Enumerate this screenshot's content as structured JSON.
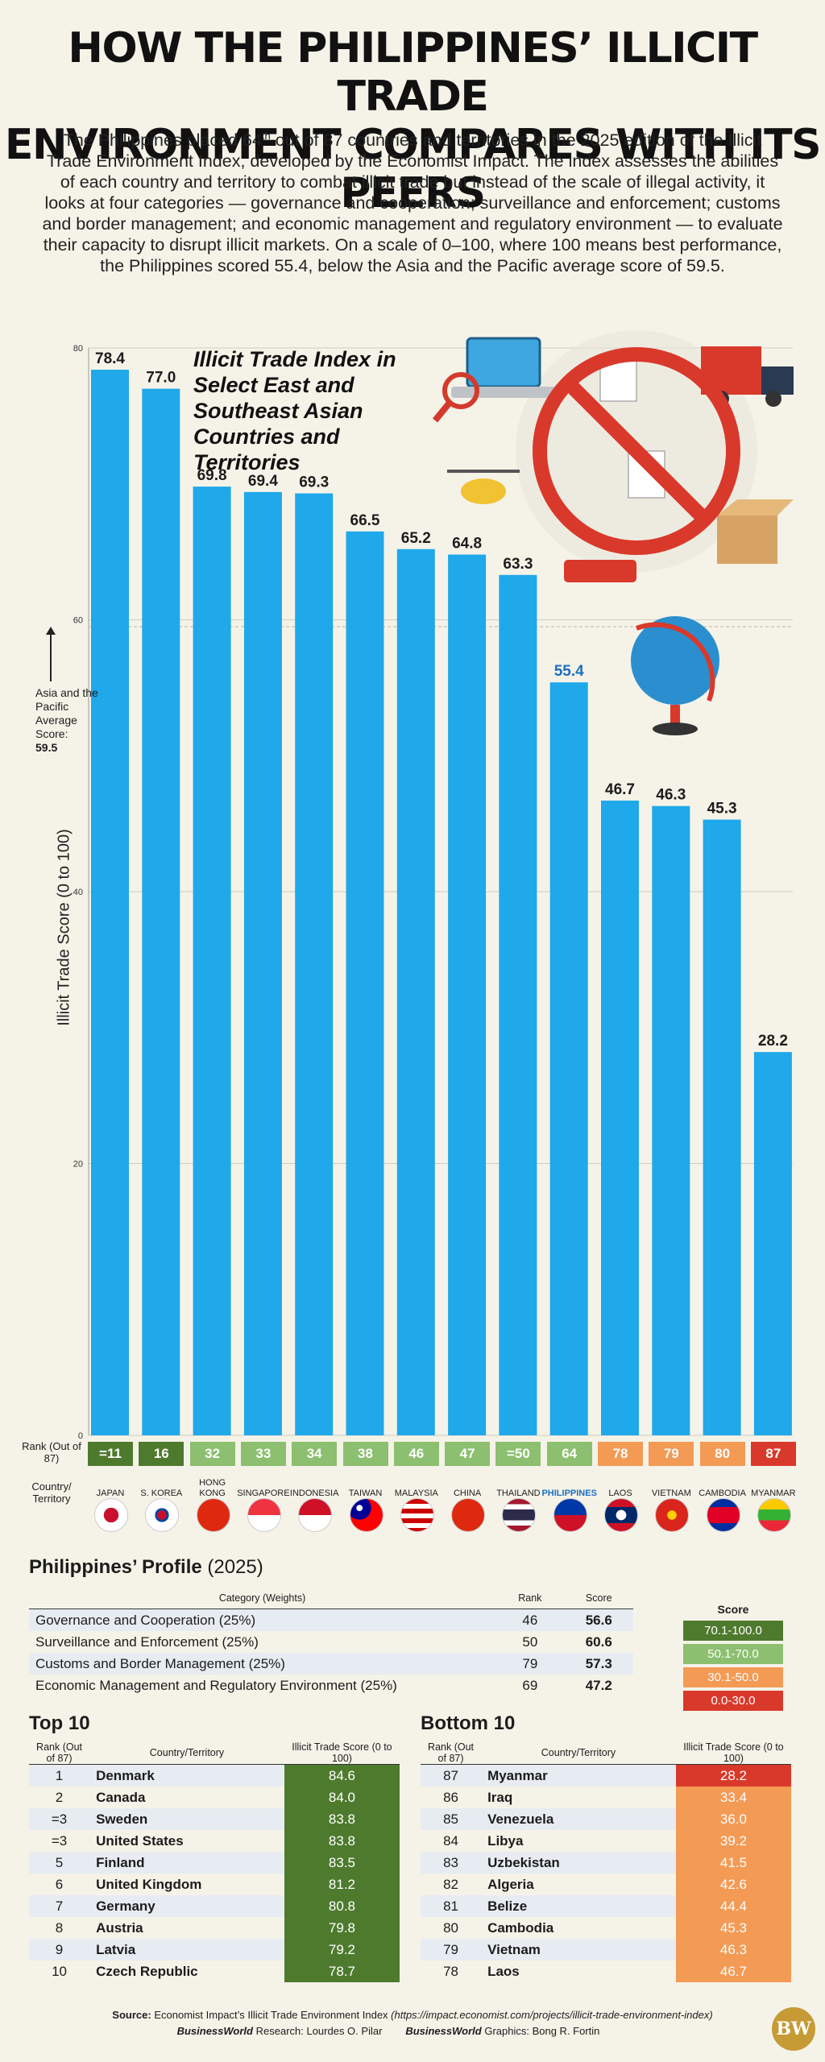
{
  "header": {
    "title_line1": "HOW THE PHILIPPINES’ ILLICIT TRADE",
    "title_line2": "ENVIRONMENT COMPARES WITH ITS PEERS",
    "intro_a": "The Philippines placed 64",
    "intro_sup": "th",
    "intro_b": " out of 87 countries and territories in the 2025 edition of the Illicit Trade Environment Index, developed by the Economist Impact. The index assesses the abilities of each country and territory to combat illicit trade but instead of the scale of illegal activity, it looks at four categories — governance and cooperation; surveillance and enforcement; customs and border management; and economic management and regulatory environment — to evaluate their capacity to disrupt illicit markets. On a scale of 0–100, where 100 means best performance, the Philippines scored 55.4, below the Asia and the Pacific average score of 59.5."
  },
  "chart_data": {
    "type": "bar",
    "title": "Illicit Trade Index in Select East and Southeast Asian Countries and Territories",
    "ylabel": "Illicit Trade Score (0 to 100)",
    "ylim": [
      0,
      80
    ],
    "yticks": [
      0,
      20,
      40,
      60,
      80
    ],
    "grid": true,
    "categories": [
      "JAPAN",
      "S. KOREA",
      "HONG KONG",
      "SINGAPORE",
      "INDONESIA",
      "TAIWAN",
      "MALAYSIA",
      "CHINA",
      "THAILAND",
      "PHILIPPINES",
      "LAOS",
      "VIETNAM",
      "CAMBODIA",
      "MYANMAR"
    ],
    "values": [
      78.4,
      77.0,
      69.8,
      69.4,
      69.3,
      66.5,
      65.2,
      64.8,
      63.3,
      55.4,
      46.7,
      46.3,
      45.3,
      28.2
    ],
    "value_labels": [
      "78.4",
      "77.0",
      "69.8",
      "69.4",
      "69.3",
      "66.5",
      "65.2",
      "64.8",
      "63.3",
      "55.4",
      "46.7",
      "46.3",
      "45.3",
      "28.2"
    ],
    "ranks": [
      "=11",
      "16",
      "32",
      "33",
      "34",
      "38",
      "46",
      "47",
      "=50",
      "64",
      "78",
      "79",
      "80",
      "87"
    ],
    "rank_colors": [
      "#4e7a2e",
      "#4e7a2e",
      "#8cbf6f",
      "#8cbf6f",
      "#8cbf6f",
      "#8cbf6f",
      "#8cbf6f",
      "#8cbf6f",
      "#8cbf6f",
      "#8cbf6f",
      "#f39a55",
      "#f39a55",
      "#f39a55",
      "#d9392b"
    ],
    "highlight": "PHILIPPINES",
    "bar_color": "#1fa8ea",
    "highlight_text_color": "#1a6fc4",
    "reference_line": {
      "value": 59.5,
      "label": "Asia and the Pacific Average Score: 59.5"
    }
  },
  "labels": {
    "rank_row": "Rank (Out of 87)",
    "country_row": "Country/ Territory",
    "avg_a": "Asia and the Pacific Average Score:",
    "avg_b": "59.5"
  },
  "flags": [
    "japan-flag-icon",
    "south-korea-flag-icon",
    "hong-kong-flag-icon",
    "singapore-flag-icon",
    "indonesia-flag-icon",
    "taiwan-flag-icon",
    "malaysia-flag-icon",
    "china-flag-icon",
    "thailand-flag-icon",
    "philippines-flag-icon",
    "laos-flag-icon",
    "vietnam-flag-icon",
    "cambodia-flag-icon",
    "myanmar-flag-icon"
  ],
  "profile": {
    "title_bold": "Philippines’ Profile",
    "title_year": "(2025)",
    "headers": [
      "Category (Weights)",
      "Rank",
      "Score"
    ],
    "rows": [
      {
        "category": "Governance and Cooperation (25%)",
        "rank": "46",
        "score": "56.6"
      },
      {
        "category": "Surveillance and Enforcement (25%)",
        "rank": "50",
        "score": "60.6"
      },
      {
        "category": "Customs and Border Management (25%)",
        "rank": "79",
        "score": "57.3"
      },
      {
        "category": "Economic Management and Regulatory Environment (25%)",
        "rank": "69",
        "score": "47.2"
      }
    ]
  },
  "legend": {
    "title": "Score",
    "items": [
      {
        "label": "70.1-100.0",
        "color": "#4e7a2e"
      },
      {
        "label": "50.1-70.0",
        "color": "#8cbf6f"
      },
      {
        "label": "30.1-50.0",
        "color": "#f39a55"
      },
      {
        "label": "0.0-30.0",
        "color": "#d9392b"
      }
    ]
  },
  "top10": {
    "title": "Top 10",
    "headers": [
      "Rank (Out of 87)",
      "Country/Territory",
      "Illicit Trade Score (0 to 100)"
    ],
    "rows": [
      {
        "rank": "1",
        "country": "Denmark",
        "score": "84.6"
      },
      {
        "rank": "2",
        "country": "Canada",
        "score": "84.0"
      },
      {
        "rank": "=3",
        "country": "Sweden",
        "score": "83.8"
      },
      {
        "rank": "=3",
        "country": "United States",
        "score": "83.8"
      },
      {
        "rank": "5",
        "country": "Finland",
        "score": "83.5"
      },
      {
        "rank": "6",
        "country": "United Kingdom",
        "score": "81.2"
      },
      {
        "rank": "7",
        "country": "Germany",
        "score": "80.8"
      },
      {
        "rank": "8",
        "country": "Austria",
        "score": "79.8"
      },
      {
        "rank": "9",
        "country": "Latvia",
        "score": "79.2"
      },
      {
        "rank": "10",
        "country": "Czech Republic",
        "score": "78.7"
      }
    ]
  },
  "bottom10": {
    "title": "Bottom 10",
    "headers": [
      "Rank (Out of 87)",
      "Country/Territory",
      "Illicit Trade Score (0 to 100)"
    ],
    "rows": [
      {
        "rank": "87",
        "country": "Myanmar",
        "score": "28.2"
      },
      {
        "rank": "86",
        "country": "Iraq",
        "score": "33.4"
      },
      {
        "rank": "85",
        "country": "Venezuela",
        "score": "36.0"
      },
      {
        "rank": "84",
        "country": "Libya",
        "score": "39.2"
      },
      {
        "rank": "83",
        "country": "Uzbekistan",
        "score": "41.5"
      },
      {
        "rank": "82",
        "country": "Algeria",
        "score": "42.6"
      },
      {
        "rank": "81",
        "country": "Belize",
        "score": "44.4"
      },
      {
        "rank": "80",
        "country": "Cambodia",
        "score": "45.3"
      },
      {
        "rank": "79",
        "country": "Vietnam",
        "score": "46.3"
      },
      {
        "rank": "78",
        "country": "Laos",
        "score": "46.7"
      }
    ]
  },
  "footer": {
    "source_label": "Source:",
    "source_text": "Economist Impact’s Illicit Trade Environment Index",
    "source_url": "(https://impact.economist.com/projects/illicit-trade-environment-index)",
    "research_label": "BusinessWorld",
    "research_text": "Research: Lourdes O. Pilar",
    "graphics_label": "BusinessWorld",
    "graphics_text": "Graphics: Bong R. Fortin",
    "logo": "BW"
  }
}
